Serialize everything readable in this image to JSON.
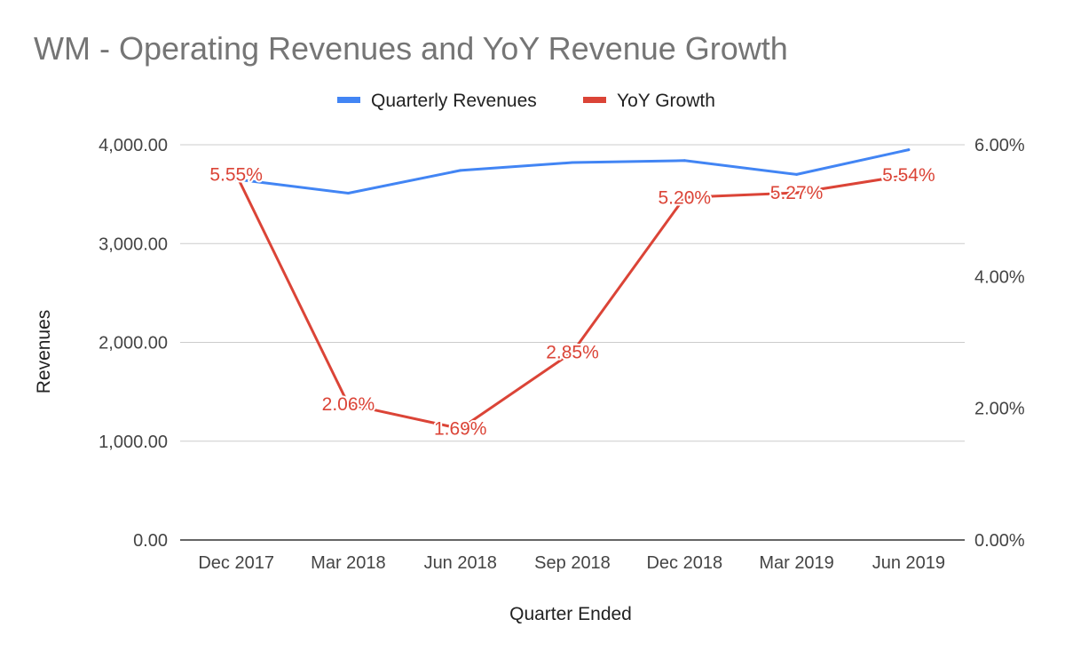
{
  "chart_data": {
    "type": "line",
    "title": "WM - Operating Revenues and YoY Revenue Growth",
    "xlabel": "Quarter Ended",
    "ylabel": "Revenues",
    "y2label": "",
    "categories": [
      "Dec 2017",
      "Mar 2018",
      "Jun 2018",
      "Sep 2018",
      "Dec 2018",
      "Mar 2019",
      "Jun 2019"
    ],
    "ylim": [
      0,
      4000
    ],
    "yticks": [
      "0.00",
      "1,000.00",
      "2,000.00",
      "3,000.00",
      "4,000.00"
    ],
    "y2lim": [
      0,
      6
    ],
    "y2ticks": [
      "0.00%",
      "2.00%",
      "4.00%",
      "6.00%"
    ],
    "grid": true,
    "legend_position": "top",
    "series": [
      {
        "name": "Quarterly Revenues",
        "axis": "left",
        "color": "#4285f4",
        "values": [
          3650,
          3510,
          3740,
          3820,
          3840,
          3700,
          3950
        ]
      },
      {
        "name": "YoY Growth",
        "axis": "right",
        "color": "#db4437",
        "values": [
          5.55,
          2.06,
          1.69,
          2.85,
          5.2,
          5.27,
          5.54
        ],
        "labels": [
          "5.55%",
          "2.06%",
          "1.69%",
          "2.85%",
          "5.20%",
          "5.27%",
          "5.54%"
        ]
      }
    ]
  }
}
